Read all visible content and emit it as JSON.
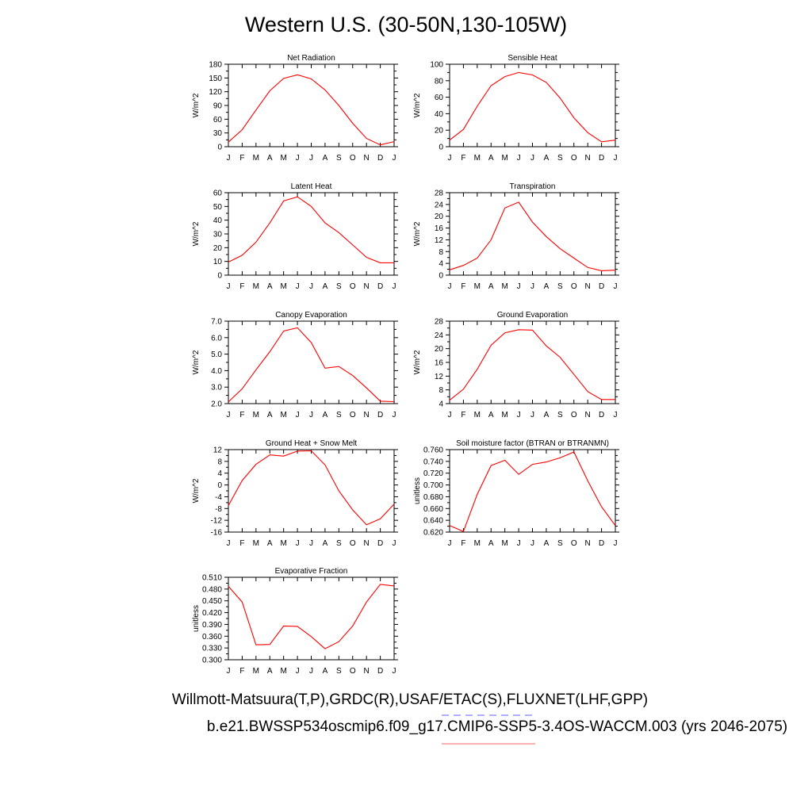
{
  "page": {
    "title": "Western U.S. (30-50N,130-105W)",
    "caption_obs": "Willmott-Matsuura(T,P),GRDC(R),USAF/ETAC(S),FLUXNET(LHF,GPP)",
    "caption_case": "b.e21.BWSSP534oscmip6.f09_g17.CMIP6-SSP5-3.4OS-WACCM.003 (yrs 2046-2075)"
  },
  "style": {
    "line_color": "#ff0000",
    "obs_legend_color": "#8080ff",
    "case_legend_color": "#ff8080"
  },
  "chart_data": [
    {
      "type": "line",
      "title": "Net Radiation",
      "ylabel": "W/m^2",
      "x": [
        "J",
        "F",
        "M",
        "A",
        "M",
        "J",
        "J",
        "A",
        "S",
        "O",
        "N",
        "D",
        "J"
      ],
      "ylim": [
        0,
        180
      ],
      "yticks": [
        "0",
        "30",
        "60",
        "90",
        "120",
        "150",
        "180"
      ],
      "values": [
        10,
        37,
        80,
        122,
        149,
        157,
        148,
        124,
        90,
        51,
        18,
        4,
        11
      ]
    },
    {
      "type": "line",
      "title": "Sensible Heat",
      "ylabel": "W/m^2",
      "x": [
        "J",
        "F",
        "M",
        "A",
        "M",
        "J",
        "J",
        "A",
        "S",
        "O",
        "N",
        "D",
        "J"
      ],
      "ylim": [
        0,
        100
      ],
      "yticks": [
        "0",
        "20",
        "40",
        "60",
        "80",
        "100"
      ],
      "values": [
        8,
        21,
        49,
        74,
        85,
        90,
        87,
        78,
        59,
        35,
        17,
        6,
        8
      ]
    },
    {
      "type": "line",
      "title": "Latent Heat",
      "ylabel": "W/m^2",
      "x": [
        "J",
        "F",
        "M",
        "A",
        "M",
        "J",
        "J",
        "A",
        "S",
        "O",
        "N",
        "D",
        "J"
      ],
      "ylim": [
        0,
        60
      ],
      "yticks": [
        "0",
        "10",
        "20",
        "30",
        "40",
        "50",
        "60"
      ],
      "values": [
        9.5,
        14.5,
        24,
        38,
        54,
        57,
        50,
        38,
        31,
        22,
        13,
        9,
        9
      ]
    },
    {
      "type": "line",
      "title": "Transpiration",
      "ylabel": "W/m^2",
      "x": [
        "J",
        "F",
        "M",
        "A",
        "M",
        "J",
        "J",
        "A",
        "S",
        "O",
        "N",
        "D",
        "J"
      ],
      "ylim": [
        0,
        28
      ],
      "yticks": [
        "0",
        "4",
        "8",
        "12",
        "16",
        "20",
        "24",
        "28"
      ],
      "values": [
        1.8,
        3.3,
        5.8,
        12,
        22.8,
        24.8,
        18,
        13.1,
        9,
        5.8,
        2.6,
        1.5,
        1.7
      ]
    },
    {
      "type": "line",
      "title": "Canopy Evaporation",
      "ylabel": "W/m^2",
      "x": [
        "J",
        "F",
        "M",
        "A",
        "M",
        "J",
        "J",
        "A",
        "S",
        "O",
        "N",
        "D",
        "J"
      ],
      "ylim": [
        2.0,
        7.0
      ],
      "yticks": [
        "2.0",
        "3.0",
        "4.0",
        "5.0",
        "6.0",
        "7.0"
      ],
      "values": [
        2.1,
        2.9,
        4.05,
        5.15,
        6.4,
        6.6,
        5.7,
        4.15,
        4.25,
        3.7,
        2.95,
        2.15,
        2.12
      ]
    },
    {
      "type": "line",
      "title": "Ground Evaporation",
      "ylabel": "W/m^2",
      "x": [
        "J",
        "F",
        "M",
        "A",
        "M",
        "J",
        "J",
        "A",
        "S",
        "O",
        "N",
        "D",
        "J"
      ],
      "ylim": [
        4,
        28
      ],
      "yticks": [
        "4",
        "8",
        "12",
        "16",
        "20",
        "24",
        "28"
      ],
      "values": [
        5,
        8.2,
        14,
        21,
        24.6,
        25.5,
        25.4,
        20.8,
        17.5,
        12.5,
        7.5,
        5.2,
        5.2
      ]
    },
    {
      "type": "line",
      "title": "Ground Heat + Snow Melt",
      "ylabel": "W/m^2",
      "x": [
        "J",
        "F",
        "M",
        "A",
        "M",
        "J",
        "J",
        "A",
        "S",
        "O",
        "N",
        "D",
        "J"
      ],
      "ylim": [
        -16,
        12
      ],
      "yticks": [
        "-16",
        "-12",
        "-8",
        "-4",
        "0",
        "4",
        "8",
        "12"
      ],
      "values": [
        -7,
        1.5,
        7,
        10.2,
        9.8,
        11.5,
        11.6,
        6.8,
        -2,
        -8.5,
        -13.5,
        -11.5,
        -6.5
      ]
    },
    {
      "type": "line",
      "title": "Soil moisture factor (BTRAN or BTRANMN)",
      "ylabel": "unitless",
      "x": [
        "J",
        "F",
        "M",
        "A",
        "M",
        "J",
        "J",
        "A",
        "S",
        "O",
        "N",
        "D",
        "J"
      ],
      "ylim": [
        0.62,
        0.76
      ],
      "yticks": [
        "0.620",
        "0.640",
        "0.660",
        "0.680",
        "0.700",
        "0.720",
        "0.740",
        "0.760"
      ],
      "values": [
        0.631,
        0.621,
        0.684,
        0.733,
        0.742,
        0.718,
        0.735,
        0.739,
        0.746,
        0.756,
        0.707,
        0.663,
        0.631
      ]
    },
    {
      "type": "line",
      "title": "Evaporative Fraction",
      "ylabel": "unitless",
      "x": [
        "J",
        "F",
        "M",
        "A",
        "M",
        "J",
        "J",
        "A",
        "S",
        "O",
        "N",
        "D",
        "J"
      ],
      "ylim": [
        0.3,
        0.51
      ],
      "yticks": [
        "0.300",
        "0.330",
        "0.360",
        "0.390",
        "0.420",
        "0.450",
        "0.480",
        "0.510"
      ],
      "values": [
        0.487,
        0.447,
        0.338,
        0.339,
        0.386,
        0.385,
        0.359,
        0.328,
        0.346,
        0.386,
        0.447,
        0.492,
        0.488
      ]
    }
  ]
}
